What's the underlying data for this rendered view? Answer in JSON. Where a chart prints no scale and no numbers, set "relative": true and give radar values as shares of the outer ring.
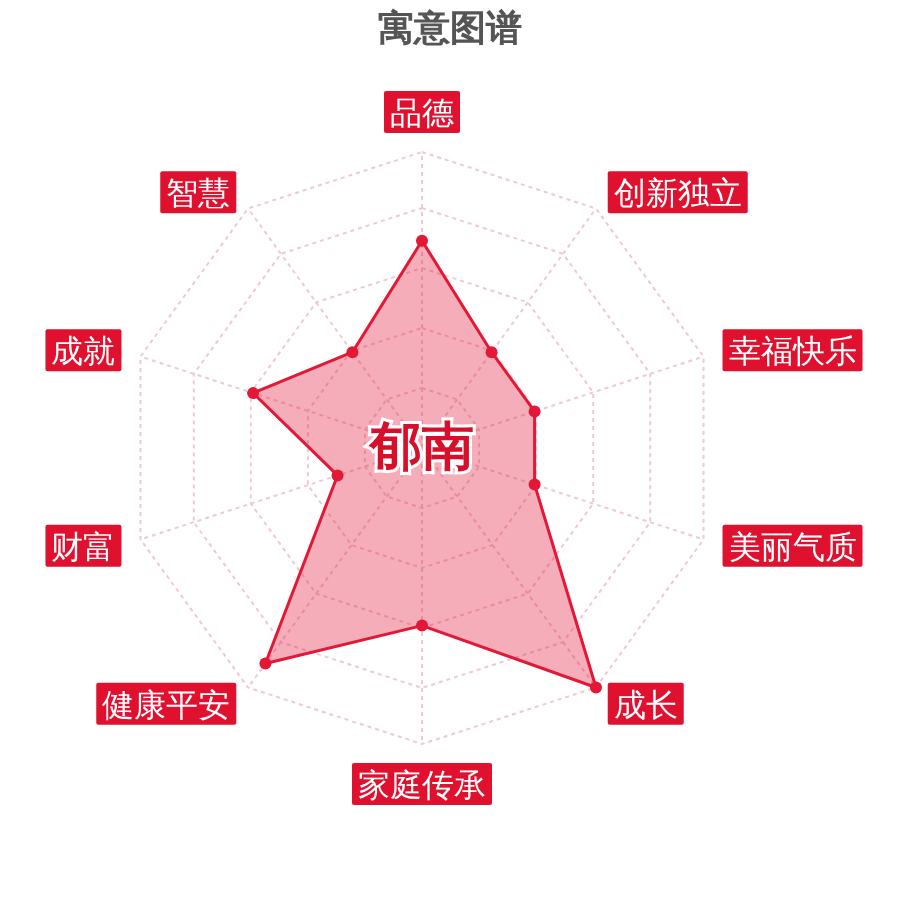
{
  "chart_data": {
    "type": "radar",
    "title": "寓意图谱",
    "categories": [
      "品德",
      "创新独立",
      "幸福快乐",
      "美丽气质",
      "成长",
      "家庭传承",
      "健康平安",
      "财富",
      "成就",
      "智慧"
    ],
    "relative": true,
    "series": [
      {
        "color": "#e31837",
        "values": [
          0.7,
          0.4,
          0.4,
          0.4,
          1.0,
          0.6,
          0.9,
          0.3,
          0.6,
          0.4
        ]
      }
    ],
    "annotations": [
      "郁南"
    ],
    "grid": true,
    "marker": "circle",
    "line_style": "solid"
  }
}
